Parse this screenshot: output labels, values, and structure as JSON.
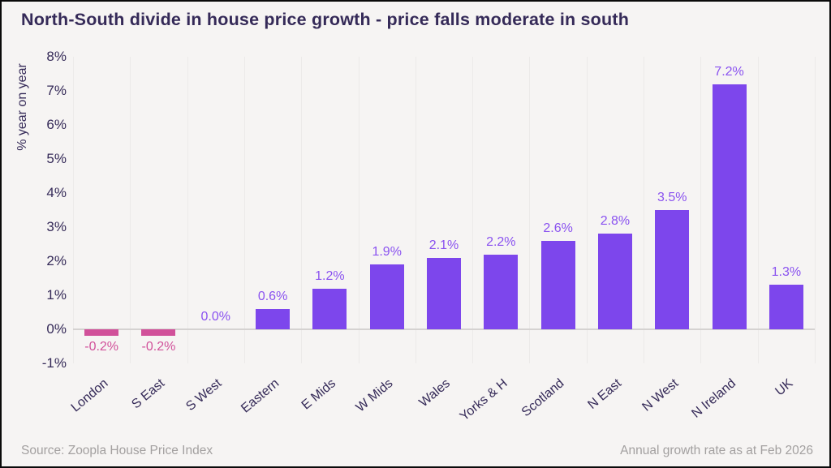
{
  "title": "North-South divide in house price growth - price falls moderate in south",
  "y_axis": {
    "title": "% year on year",
    "ticks": [
      {
        "value": 8,
        "label": "8%"
      },
      {
        "value": 7,
        "label": "7%"
      },
      {
        "value": 6,
        "label": "6%"
      },
      {
        "value": 5,
        "label": "5%"
      },
      {
        "value": 4,
        "label": "4%"
      },
      {
        "value": 3,
        "label": "3%"
      },
      {
        "value": 2,
        "label": "2%"
      },
      {
        "value": 1,
        "label": "1%"
      },
      {
        "value": 0,
        "label": "0%"
      },
      {
        "value": -1,
        "label": "-1%"
      }
    ]
  },
  "chart_data": {
    "type": "bar",
    "title": "North-South divide in house price growth - price falls moderate in south",
    "xlabel": "",
    "ylabel": "% year on year",
    "ylim": [
      -1,
      8
    ],
    "grid": "vertical-category-separators",
    "legend_position": "none",
    "categories": [
      "London",
      "S East",
      "S West",
      "Eastern",
      "E Mids",
      "W Mids",
      "Wales",
      "Yorks & H",
      "Scotland",
      "N East",
      "N West",
      "N Ireland",
      "UK"
    ],
    "values": [
      -0.2,
      -0.2,
      0.0,
      0.6,
      1.2,
      1.9,
      2.1,
      2.2,
      2.6,
      2.8,
      3.5,
      7.2,
      1.3
    ],
    "value_labels": [
      "-0.2%",
      "-0.2%",
      "0.0%",
      "0.6%",
      "1.2%",
      "1.9%",
      "2.1%",
      "2.2%",
      "2.6%",
      "2.8%",
      "3.5%",
      "7.2%",
      "1.3%"
    ]
  },
  "colors": {
    "positive_bar": "#7d46ec",
    "negative_bar": "#d1519a",
    "positive_label": "#8a52f0",
    "negative_label": "#d1519a",
    "title_text": "#352a58",
    "background": "#f6f4f3"
  },
  "footer": {
    "source": "Source: Zoopla House Price Index",
    "note": "Annual growth rate as at Feb 2026"
  }
}
